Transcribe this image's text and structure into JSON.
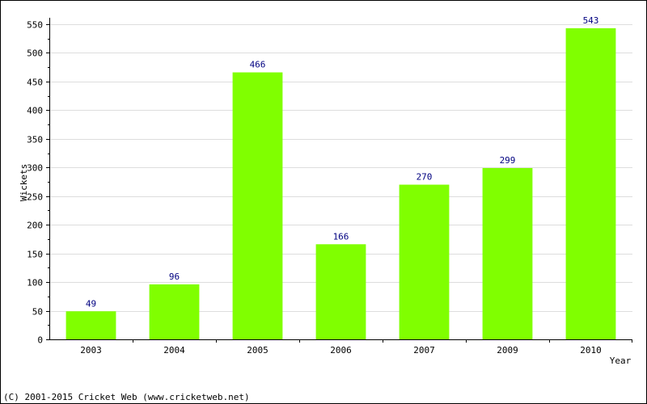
{
  "chart_data": {
    "type": "bar",
    "title": "",
    "xlabel": "Year",
    "ylabel": "Wickets",
    "categories": [
      "2003",
      "2004",
      "2005",
      "2006",
      "2007",
      "2009",
      "2010"
    ],
    "values": [
      49,
      96,
      466,
      166,
      270,
      299,
      543
    ],
    "ylim": [
      0,
      550
    ],
    "yticks": [
      0,
      50,
      100,
      150,
      200,
      250,
      300,
      350,
      400,
      450,
      500,
      550
    ],
    "grid": true,
    "data_labels": true
  },
  "footer": {
    "copyright": "(C) 2001-2015 Cricket Web (www.cricketweb.net)"
  },
  "colors": {
    "bar": "#80ff00",
    "data_label": "#000080",
    "grid": "#dddddd",
    "axis": "#000000",
    "border": "#000000"
  }
}
